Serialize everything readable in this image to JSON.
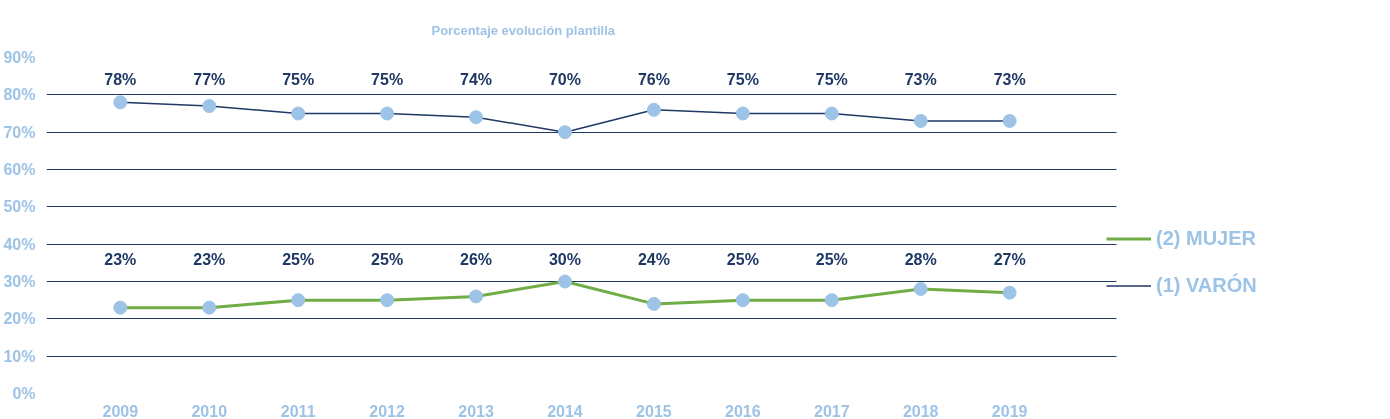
{
  "chart_data": {
    "type": "line",
    "title": "Porcentaje evolución plantilla",
    "categories": [
      "2009",
      "2010",
      "2011",
      "2012",
      "2013",
      "2014",
      "2015",
      "2016",
      "2017",
      "2018",
      "2019"
    ],
    "series": [
      {
        "name": "(2) MUJER",
        "color": "#70ad47",
        "values": [
          23,
          23,
          25,
          25,
          26,
          30,
          24,
          25,
          25,
          28,
          27
        ],
        "value_labels": [
          "23%",
          "23%",
          "25%",
          "25%",
          "26%",
          "30%",
          "24%",
          "25%",
          "25%",
          "28%",
          "27%"
        ]
      },
      {
        "name": "(1) VARÓN",
        "color": "#1f3864",
        "values": [
          78,
          77,
          75,
          75,
          74,
          70,
          76,
          75,
          75,
          73,
          73
        ],
        "value_labels": [
          "78%",
          "77%",
          "75%",
          "75%",
          "74%",
          "70%",
          "76%",
          "75%",
          "75%",
          "73%",
          "73%"
        ]
      }
    ],
    "ylim": [
      0,
      90
    ],
    "yticks": [
      {
        "value": 0,
        "label": "0%"
      },
      {
        "value": 10,
        "label": "10%"
      },
      {
        "value": 20,
        "label": "20%"
      },
      {
        "value": 30,
        "label": "30%"
      },
      {
        "value": 40,
        "label": "40%"
      },
      {
        "value": 50,
        "label": "50%"
      },
      {
        "value": 60,
        "label": "60%"
      },
      {
        "value": 70,
        "label": "70%"
      },
      {
        "value": 80,
        "label": "80%"
      },
      {
        "value": 90,
        "label": "90%"
      }
    ],
    "grid": "y",
    "legend": "right",
    "marker": "circle",
    "line_style": "solid"
  }
}
